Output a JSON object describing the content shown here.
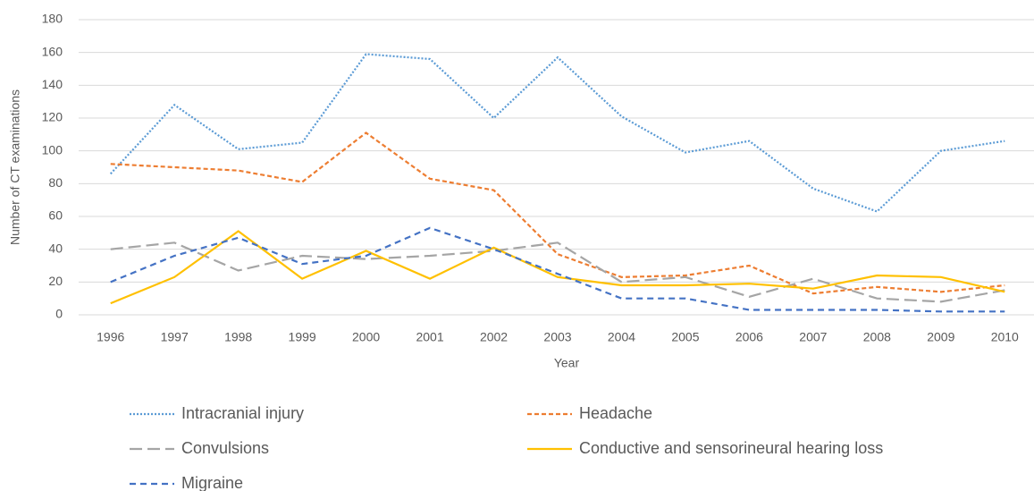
{
  "chart_data": {
    "type": "line",
    "x_label": "Year",
    "y_label": "Number of CT examinations",
    "categories": [
      "1996",
      "1997",
      "1998",
      "1999",
      "2000",
      "2001",
      "2002",
      "2003",
      "2004",
      "2005",
      "2006",
      "2007",
      "2008",
      "2009",
      "2010"
    ],
    "series": [
      {
        "name": "Intracranial injury",
        "color": "#5b9bd5",
        "dash": "2,2",
        "values": [
          86,
          128,
          101,
          105,
          159,
          156,
          120,
          157,
          121,
          99,
          106,
          77,
          63,
          100,
          106
        ]
      },
      {
        "name": "Headache",
        "color": "#ed7d31",
        "dash": "5,3",
        "values": [
          92,
          90,
          88,
          81,
          111,
          83,
          76,
          37,
          23,
          24,
          30,
          13,
          17,
          14,
          18
        ]
      },
      {
        "name": "Convulsions",
        "color": "#a5a5a5",
        "dash": "14,6",
        "values": [
          40,
          44,
          27,
          36,
          34,
          36,
          39,
          44,
          20,
          23,
          11,
          22,
          10,
          8,
          15
        ]
      },
      {
        "name": "Conductive and sensorineural hearing loss",
        "color": "#ffc000",
        "dash": "none",
        "values": [
          7,
          23,
          51,
          22,
          39,
          22,
          41,
          23,
          18,
          18,
          19,
          16,
          24,
          23,
          14
        ]
      },
      {
        "name": "Migraine",
        "color": "#4472c4",
        "dash": "7,5",
        "values": [
          20,
          36,
          47,
          31,
          36,
          53,
          40,
          25,
          10,
          10,
          3,
          3,
          3,
          2,
          2
        ]
      }
    ],
    "ylim": [
      0,
      180
    ],
    "yticks": [
      0,
      20,
      40,
      60,
      80,
      100,
      120,
      140,
      160,
      180
    ],
    "grid": true,
    "legend": "bottom"
  }
}
